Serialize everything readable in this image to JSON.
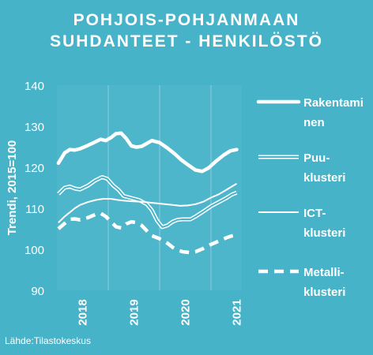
{
  "colors": {
    "background": "#46b3c9",
    "foreground": "#ffffff"
  },
  "title_lines": [
    "POHJOIS-POHJANMAAN",
    "SUHDANTEET - HENKILÖSTÖ"
  ],
  "source": "Lähde:Tilastokeskus",
  "chart_data": {
    "type": "line",
    "title": "POHJOIS-POHJANMAAN SUHDANTEET - HENKILÖSTÖ",
    "ylabel": "Trendi, 2015=100",
    "xlabel": "",
    "ylim": [
      90,
      140
    ],
    "yticks": [
      90,
      100,
      110,
      120,
      130,
      140
    ],
    "xlim": [
      2017.5,
      2021.1
    ],
    "xticks": [
      {
        "label": "2018",
        "x": 2018
      },
      {
        "label": "2019",
        "x": 2019
      },
      {
        "label": "2020",
        "x": 2020
      },
      {
        "label": "2021",
        "x": 2021
      }
    ],
    "grid": "vertical lines at year boundaries",
    "legend": "right",
    "series": [
      {
        "name": "Rakentaminen",
        "legend_lines": [
          "Rakentami",
          "nen"
        ],
        "style": "thick",
        "points": [
          [
            2017.53,
            121
          ],
          [
            2017.65,
            123.5
          ],
          [
            2017.75,
            124.3
          ],
          [
            2017.85,
            124.2
          ],
          [
            2017.95,
            124.5
          ],
          [
            2018.1,
            125.3
          ],
          [
            2018.25,
            126.2
          ],
          [
            2018.35,
            126.8
          ],
          [
            2018.45,
            126.5
          ],
          [
            2018.55,
            127.2
          ],
          [
            2018.65,
            128.2
          ],
          [
            2018.75,
            128.3
          ],
          [
            2018.85,
            127
          ],
          [
            2018.95,
            125.2
          ],
          [
            2019.05,
            124.9
          ],
          [
            2019.15,
            125.1
          ],
          [
            2019.25,
            125.8
          ],
          [
            2019.35,
            126.5
          ],
          [
            2019.5,
            126
          ],
          [
            2019.65,
            124.7
          ],
          [
            2019.8,
            123.2
          ],
          [
            2019.92,
            121.8
          ],
          [
            2020.05,
            120.6
          ],
          [
            2020.2,
            119.3
          ],
          [
            2020.33,
            119
          ],
          [
            2020.45,
            119.8
          ],
          [
            2020.6,
            121.5
          ],
          [
            2020.75,
            123
          ],
          [
            2020.88,
            124
          ],
          [
            2021.0,
            124.3
          ]
        ]
      },
      {
        "name": "Puuklusteri",
        "legend_lines": [
          "Puu-",
          "klusteri"
        ],
        "style": "double",
        "points": [
          [
            2017.53,
            113.5
          ],
          [
            2017.65,
            115
          ],
          [
            2017.75,
            115.3
          ],
          [
            2017.85,
            114.8
          ],
          [
            2017.95,
            114.6
          ],
          [
            2018.1,
            115.5
          ],
          [
            2018.25,
            116.8
          ],
          [
            2018.38,
            117.6
          ],
          [
            2018.48,
            117.2
          ],
          [
            2018.6,
            115.5
          ],
          [
            2018.7,
            114.5
          ],
          [
            2018.8,
            113
          ],
          [
            2018.95,
            112.5
          ],
          [
            2019.1,
            112
          ],
          [
            2019.25,
            111
          ],
          [
            2019.35,
            109.5
          ],
          [
            2019.45,
            107
          ],
          [
            2019.55,
            105.4
          ],
          [
            2019.65,
            105.8
          ],
          [
            2019.75,
            106.7
          ],
          [
            2019.85,
            107.2
          ],
          [
            2019.95,
            107.3
          ],
          [
            2020.1,
            107.3
          ],
          [
            2020.2,
            108
          ],
          [
            2020.35,
            109.2
          ],
          [
            2020.5,
            110.5
          ],
          [
            2020.65,
            111.5
          ],
          [
            2020.8,
            112.5
          ],
          [
            2020.9,
            113.3
          ],
          [
            2021.0,
            113.8
          ]
        ]
      },
      {
        "name": "ICT-klusteri",
        "legend_lines": [
          "ICT-",
          "klusteri"
        ],
        "style": "thin",
        "points": [
          [
            2017.53,
            106.5
          ],
          [
            2017.65,
            108
          ],
          [
            2017.75,
            109
          ],
          [
            2017.85,
            110
          ],
          [
            2017.95,
            110.8
          ],
          [
            2018.1,
            111.5
          ],
          [
            2018.25,
            112
          ],
          [
            2018.4,
            112.3
          ],
          [
            2018.55,
            112.3
          ],
          [
            2018.7,
            112
          ],
          [
            2018.85,
            111.8
          ],
          [
            2019.0,
            111.7
          ],
          [
            2019.15,
            111.6
          ],
          [
            2019.3,
            111.4
          ],
          [
            2019.45,
            111.2
          ],
          [
            2019.6,
            111
          ],
          [
            2019.75,
            110.8
          ],
          [
            2019.9,
            110.6
          ],
          [
            2020.05,
            110.7
          ],
          [
            2020.2,
            111
          ],
          [
            2020.35,
            111.6
          ],
          [
            2020.5,
            112.6
          ],
          [
            2020.65,
            113.4
          ],
          [
            2020.8,
            114.5
          ],
          [
            2020.92,
            115.4
          ],
          [
            2021.0,
            116
          ]
        ]
      },
      {
        "name": "Metalliklusteri",
        "legend_lines": [
          "Metalli-",
          "klusteri"
        ],
        "style": "dashed",
        "points": [
          [
            2017.53,
            105
          ],
          [
            2017.65,
            106.3
          ],
          [
            2017.75,
            107.3
          ],
          [
            2017.85,
            107.4
          ],
          [
            2017.95,
            107.2
          ],
          [
            2018.1,
            107.7
          ],
          [
            2018.25,
            108.5
          ],
          [
            2018.35,
            108.8
          ],
          [
            2018.45,
            108
          ],
          [
            2018.55,
            106.8
          ],
          [
            2018.65,
            105.5
          ],
          [
            2018.75,
            105.2
          ],
          [
            2018.85,
            106.2
          ],
          [
            2018.95,
            106.7
          ],
          [
            2019.05,
            106.5
          ],
          [
            2019.15,
            105.8
          ],
          [
            2019.25,
            104.5
          ],
          [
            2019.35,
            103.3
          ],
          [
            2019.45,
            102.8
          ],
          [
            2019.55,
            102.3
          ],
          [
            2019.65,
            101.5
          ],
          [
            2019.75,
            100.5
          ],
          [
            2019.85,
            99.8
          ],
          [
            2019.95,
            99.4
          ],
          [
            2020.1,
            99.2
          ],
          [
            2020.2,
            99.4
          ],
          [
            2020.35,
            100.2
          ],
          [
            2020.5,
            101.2
          ],
          [
            2020.65,
            102
          ],
          [
            2020.8,
            102.8
          ],
          [
            2020.92,
            103.3
          ],
          [
            2021.0,
            103.5
          ]
        ]
      }
    ]
  }
}
